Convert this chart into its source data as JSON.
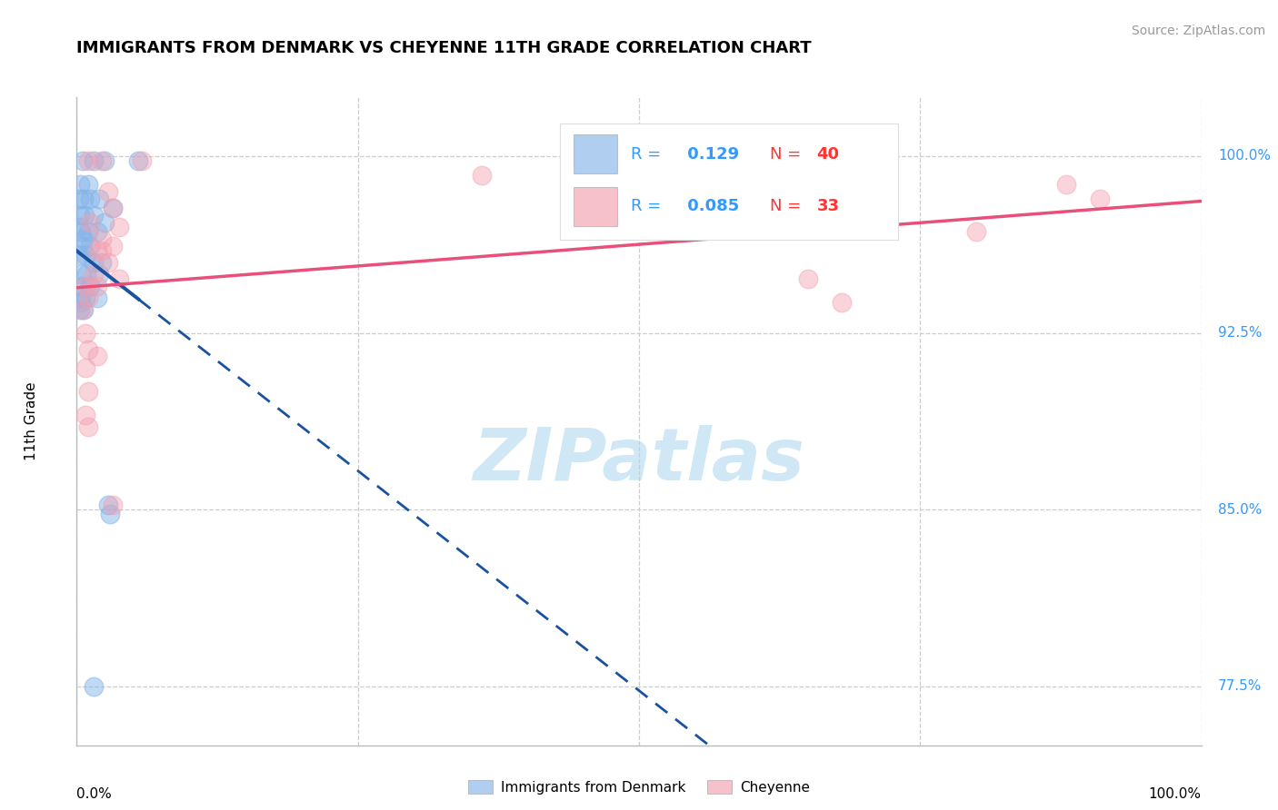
{
  "title": "IMMIGRANTS FROM DENMARK VS CHEYENNE 11TH GRADE CORRELATION CHART",
  "source_text": "Source: ZipAtlas.com",
  "ylabel": "11th Grade",
  "legend_blue_r": "0.129",
  "legend_blue_n": "40",
  "legend_pink_r": "0.085",
  "legend_pink_n": "33",
  "blue_color": "#85B4E8",
  "pink_color": "#F4A0B0",
  "blue_line_color": "#1A52A0",
  "pink_line_color": "#E8507A",
  "blue_scatter": [
    [
      0.5,
      99.8
    ],
    [
      1.5,
      99.8
    ],
    [
      2.5,
      99.8
    ],
    [
      5.5,
      99.8
    ],
    [
      0.3,
      98.8
    ],
    [
      1.0,
      98.8
    ],
    [
      0.2,
      98.2
    ],
    [
      0.6,
      98.2
    ],
    [
      1.2,
      98.2
    ],
    [
      2.0,
      98.2
    ],
    [
      3.2,
      97.8
    ],
    [
      0.3,
      97.5
    ],
    [
      0.7,
      97.5
    ],
    [
      1.5,
      97.5
    ],
    [
      2.5,
      97.2
    ],
    [
      0.4,
      96.8
    ],
    [
      1.0,
      96.8
    ],
    [
      1.8,
      96.8
    ],
    [
      0.5,
      96.2
    ],
    [
      1.2,
      96.2
    ],
    [
      0.3,
      95.8
    ],
    [
      0.8,
      95.8
    ],
    [
      1.5,
      95.5
    ],
    [
      2.2,
      95.5
    ],
    [
      0.4,
      95.0
    ],
    [
      0.9,
      95.0
    ],
    [
      2.0,
      95.0
    ],
    [
      0.5,
      94.5
    ],
    [
      1.2,
      94.5
    ],
    [
      0.3,
      94.0
    ],
    [
      0.8,
      94.0
    ],
    [
      1.8,
      94.0
    ],
    [
      0.3,
      93.5
    ],
    [
      0.6,
      93.5
    ],
    [
      2.8,
      85.2
    ],
    [
      3.0,
      84.8
    ],
    [
      1.5,
      77.5
    ],
    [
      0.2,
      97.0
    ],
    [
      0.4,
      93.8
    ],
    [
      0.6,
      96.5
    ]
  ],
  "pink_scatter": [
    [
      1.0,
      99.8
    ],
    [
      2.2,
      99.8
    ],
    [
      5.8,
      99.8
    ],
    [
      2.8,
      98.5
    ],
    [
      3.2,
      97.8
    ],
    [
      1.2,
      97.2
    ],
    [
      3.8,
      97.0
    ],
    [
      2.2,
      96.5
    ],
    [
      3.2,
      96.2
    ],
    [
      1.8,
      96.0
    ],
    [
      2.2,
      96.0
    ],
    [
      2.8,
      95.5
    ],
    [
      1.5,
      95.0
    ],
    [
      3.8,
      94.8
    ],
    [
      0.8,
      94.5
    ],
    [
      1.8,
      94.5
    ],
    [
      1.0,
      94.0
    ],
    [
      0.5,
      93.5
    ],
    [
      0.8,
      92.5
    ],
    [
      1.0,
      91.8
    ],
    [
      1.8,
      91.5
    ],
    [
      0.8,
      91.0
    ],
    [
      1.0,
      90.0
    ],
    [
      0.8,
      89.0
    ],
    [
      1.0,
      88.5
    ],
    [
      36.0,
      99.2
    ],
    [
      51.0,
      97.8
    ],
    [
      65.0,
      94.8
    ],
    [
      68.0,
      93.8
    ],
    [
      80.0,
      96.8
    ],
    [
      88.0,
      98.8
    ],
    [
      91.0,
      98.2
    ],
    [
      3.2,
      85.2
    ]
  ],
  "xmin": 0.0,
  "xmax": 100.0,
  "ymin": 75.0,
  "ymax": 102.5,
  "ytick_vals": [
    77.5,
    85.0,
    92.5,
    100.0
  ],
  "grid_color": "#CCCCCC",
  "watermark_text": "ZIPatlas",
  "watermark_color": "#C8E4F5"
}
